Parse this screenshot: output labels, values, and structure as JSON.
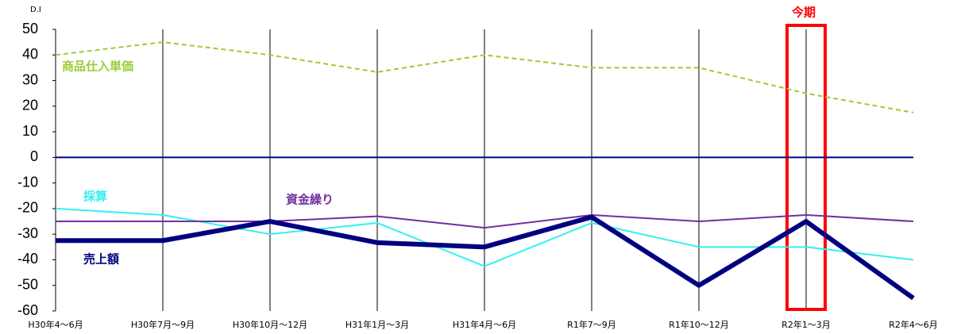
{
  "chart_data": {
    "type": "line",
    "y_axis_label": "D.I",
    "annotation": "今期",
    "categories": [
      "H30年4～6月",
      "H30年7月～9月",
      "H30年10月～12月",
      "H31年1月～3月",
      "H31年4月～6月",
      "R1年7～9月",
      "R1年10～12月",
      "R2年1～3月",
      "R2年4～6月"
    ],
    "series": [
      {
        "name": "商品仕入単価",
        "color": "#9acd32",
        "dashed": true,
        "values": [
          40,
          45,
          40,
          33.3,
          40,
          35,
          35,
          25,
          17.5
        ]
      },
      {
        "name": "採算",
        "color": "#33f0f0",
        "values": [
          -20,
          -22.5,
          -30,
          -25.6,
          -42.5,
          -25.6,
          -35,
          -35,
          -40
        ]
      },
      {
        "name": "資金繰り",
        "color": "#7030a0",
        "values": [
          -25,
          -25,
          -25,
          -23,
          -27.5,
          -22.5,
          -25,
          -22.5,
          -25
        ]
      },
      {
        "name": "売上額",
        "color": "#000080",
        "values": [
          -32.5,
          -32.5,
          -25,
          -33.3,
          -35,
          -23.3,
          -50,
          -25,
          -55
        ]
      }
    ],
    "ylim": [
      -60,
      50
    ],
    "yticks": [
      50,
      40,
      30,
      20,
      10,
      0,
      -10,
      -20,
      -30,
      -40,
      -50,
      -60
    ],
    "grid": "x"
  }
}
